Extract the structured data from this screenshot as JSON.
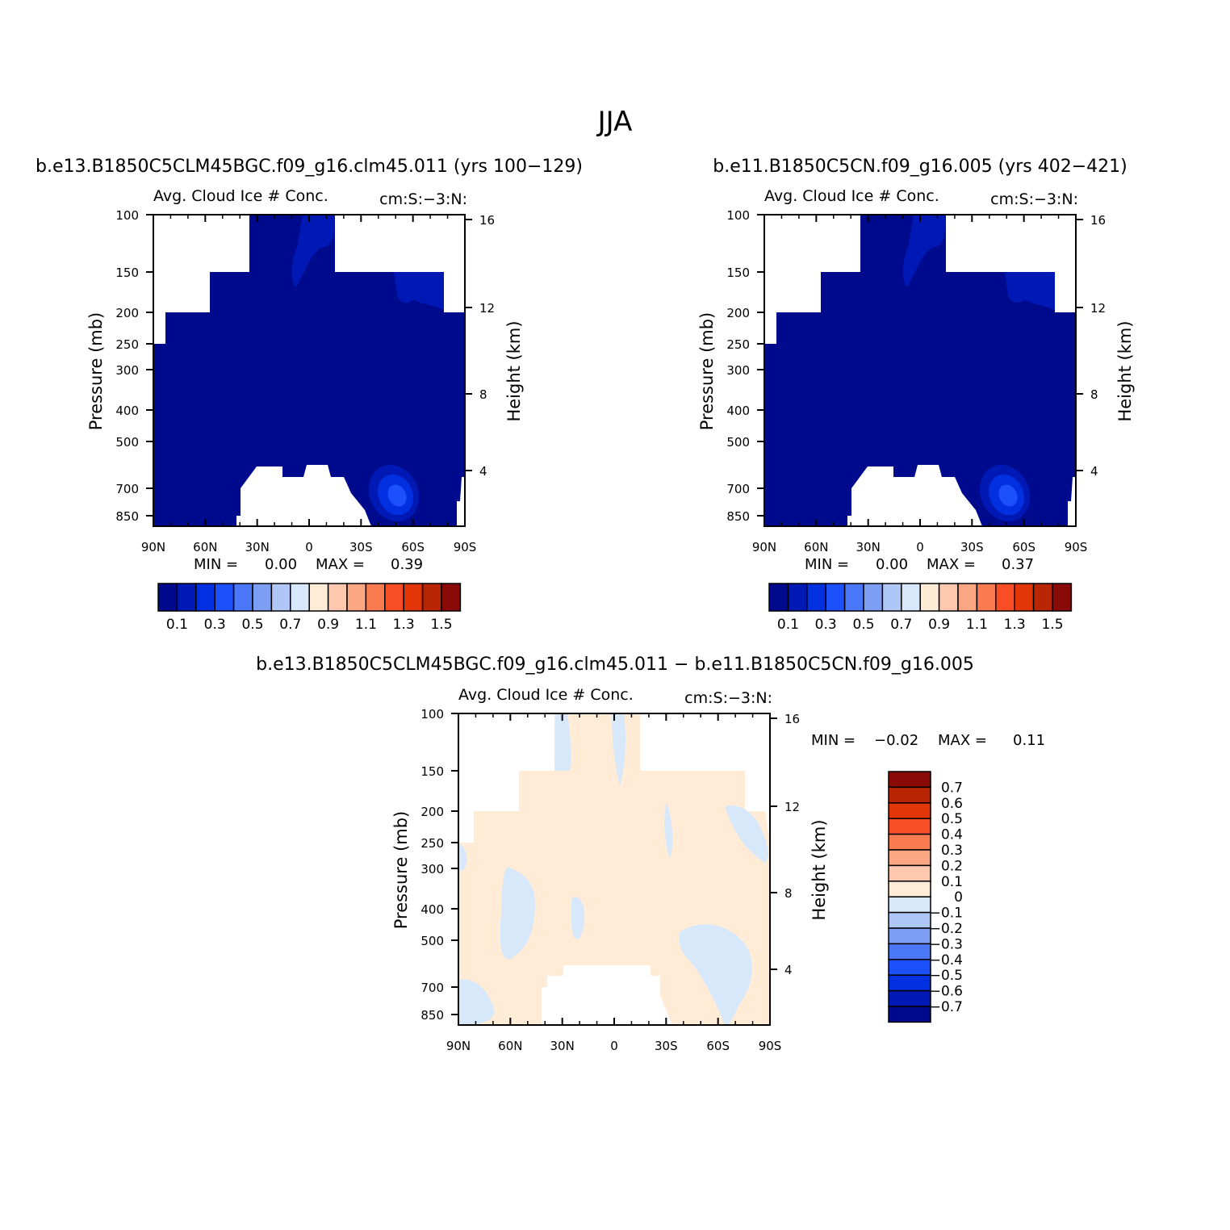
{
  "figure": {
    "season_title": "JJA"
  },
  "colors": {
    "abs_levels": [
      "#000a8c",
      "#0019b4",
      "#0030e0",
      "#1c50fb",
      "#4b78f8",
      "#7d9ff3",
      "#afc7f7",
      "#d7e8fb",
      "#ffebd6",
      "#fdc8ae",
      "#fba784",
      "#fa7b4f",
      "#f94e25",
      "#e23508",
      "#b82605",
      "#8a0a08"
    ],
    "diff_levels": [
      "#000a8c",
      "#0019b4",
      "#0030e0",
      "#1c50fb",
      "#4b78f8",
      "#7d9ff3",
      "#afc7f7",
      "#d7e8fb",
      "#ffebd6",
      "#fdc8ae",
      "#fba784",
      "#fa7b4f",
      "#f94e25",
      "#e23508",
      "#b82605",
      "#8a0a08"
    ]
  },
  "chart_data": [
    {
      "type": "heatmap",
      "panel": "case1",
      "title": "b.e13.B1850C5CLM45BGC.f09_g16.clm45.011 (yrs 100−129)",
      "left_title": "Avg. Cloud Ice # Conc.",
      "right_title": "cm:S:−3:N:",
      "xlabel": "",
      "ylabel": "Pressure (mb)",
      "y2label": "Height (km)",
      "x_ticks": [
        "90N",
        "60N",
        "30N",
        "0",
        "30S",
        "60S",
        "90S"
      ],
      "y_ticks": [
        "100",
        "150",
        "200",
        "250",
        "300",
        "400",
        "500",
        "700",
        "850"
      ],
      "y2_ticks": [
        "16",
        "12",
        "8",
        "4"
      ],
      "min_label": "MIN =",
      "min_value": "0.00",
      "max_label": "MAX =",
      "max_value": "0.39",
      "colorbar_labels": [
        "0.1",
        "0.3",
        "0.5",
        "0.7",
        "0.9",
        "1.1",
        "1.3",
        "1.5"
      ],
      "colorbar_orientation": "horizontal",
      "min": 0.0,
      "max": 0.39
    },
    {
      "type": "heatmap",
      "panel": "case2",
      "title": "b.e11.B1850C5CN.f09_g16.005 (yrs 402−421)",
      "left_title": "Avg. Cloud Ice # Conc.",
      "right_title": "cm:S:−3:N:",
      "xlabel": "",
      "ylabel": "Pressure (mb)",
      "y2label": "Height (km)",
      "x_ticks": [
        "90N",
        "60N",
        "30N",
        "0",
        "30S",
        "60S",
        "90S"
      ],
      "y_ticks": [
        "100",
        "150",
        "200",
        "250",
        "300",
        "400",
        "500",
        "700",
        "850"
      ],
      "y2_ticks": [
        "16",
        "12",
        "8",
        "4"
      ],
      "min_label": "MIN =",
      "min_value": "0.00",
      "max_label": "MAX =",
      "max_value": "0.37",
      "colorbar_labels": [
        "0.1",
        "0.3",
        "0.5",
        "0.7",
        "0.9",
        "1.1",
        "1.3",
        "1.5"
      ],
      "colorbar_orientation": "horizontal",
      "min": 0.0,
      "max": 0.37
    },
    {
      "type": "heatmap",
      "panel": "difference",
      "title": "b.e13.B1850C5CLM45BGC.f09_g16.clm45.011 − b.e11.B1850C5CN.f09_g16.005",
      "left_title": "Avg. Cloud Ice # Conc.",
      "right_title": "cm:S:−3:N:",
      "xlabel": "",
      "ylabel": "Pressure (mb)",
      "y2label": "Height (km)",
      "x_ticks": [
        "90N",
        "60N",
        "30N",
        "0",
        "30S",
        "60S",
        "90S"
      ],
      "y_ticks": [
        "100",
        "150",
        "200",
        "250",
        "300",
        "400",
        "500",
        "700",
        "850"
      ],
      "y2_ticks": [
        "16",
        "12",
        "8",
        "4"
      ],
      "min_label": "MIN =",
      "min_value": "−0.02",
      "max_label": "MAX =",
      "max_value": "0.11",
      "colorbar_labels": [
        "0.7",
        "0.6",
        "0.5",
        "0.4",
        "0.3",
        "0.2",
        "0.1",
        "0",
        "−0.1",
        "−0.2",
        "−0.3",
        "−0.4",
        "−0.5",
        "−0.6",
        "−0.7"
      ],
      "colorbar_orientation": "vertical",
      "min": -0.02,
      "max": 0.11
    }
  ]
}
